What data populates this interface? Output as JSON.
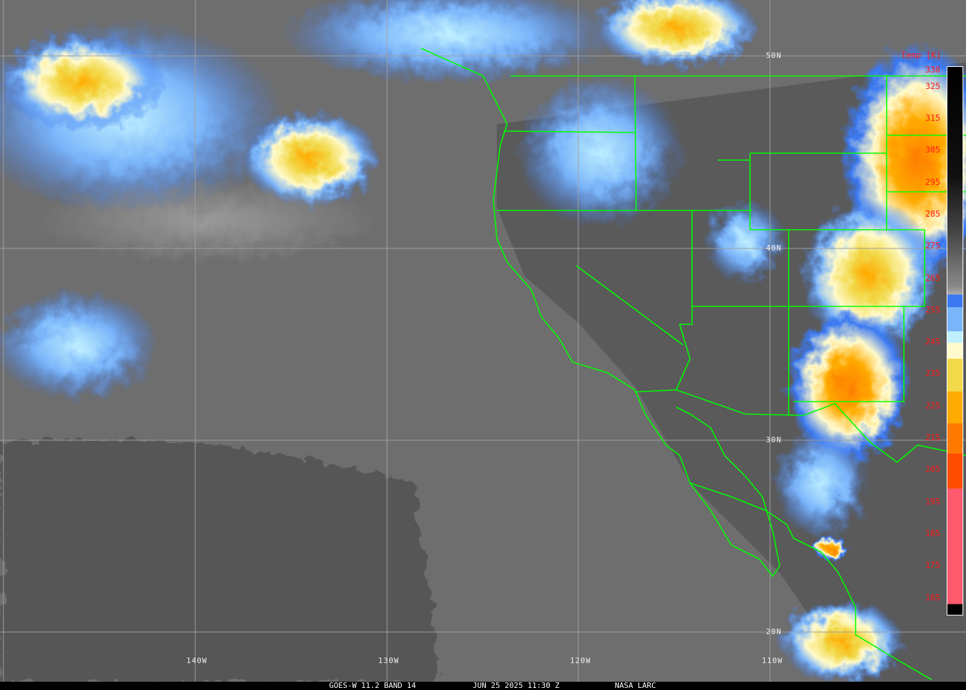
{
  "caption": {
    "satellite": "GOES-W 11.2 BAND 14",
    "datetime": "JUN 25 2025 11:30 Z",
    "credit": "NASA LARC"
  },
  "lat_labels": [
    "50N",
    "40N",
    "30N",
    "20N"
  ],
  "lon_labels": [
    "140W",
    "130W",
    "120W",
    "110W"
  ],
  "colorbar": {
    "title": "Temp [K]",
    "ticks": [
      "330",
      "325",
      "315",
      "305",
      "295",
      "285",
      "275",
      "265",
      "255",
      "245",
      "235",
      "225",
      "215",
      "205",
      "195",
      "185",
      "175",
      "165"
    ],
    "colors": {
      "blue": "#3a78f2",
      "light_blue": "#7ab4fa",
      "cyan": "#bff0ff",
      "pale_yellow": "#fffacc",
      "yellow": "#f2d94a",
      "amber": "#ffab00",
      "orange": "#ff7b00",
      "red_orange": "#ff4d00",
      "pink": "#ff5a6e"
    }
  },
  "overlay_color": "#00ff00"
}
